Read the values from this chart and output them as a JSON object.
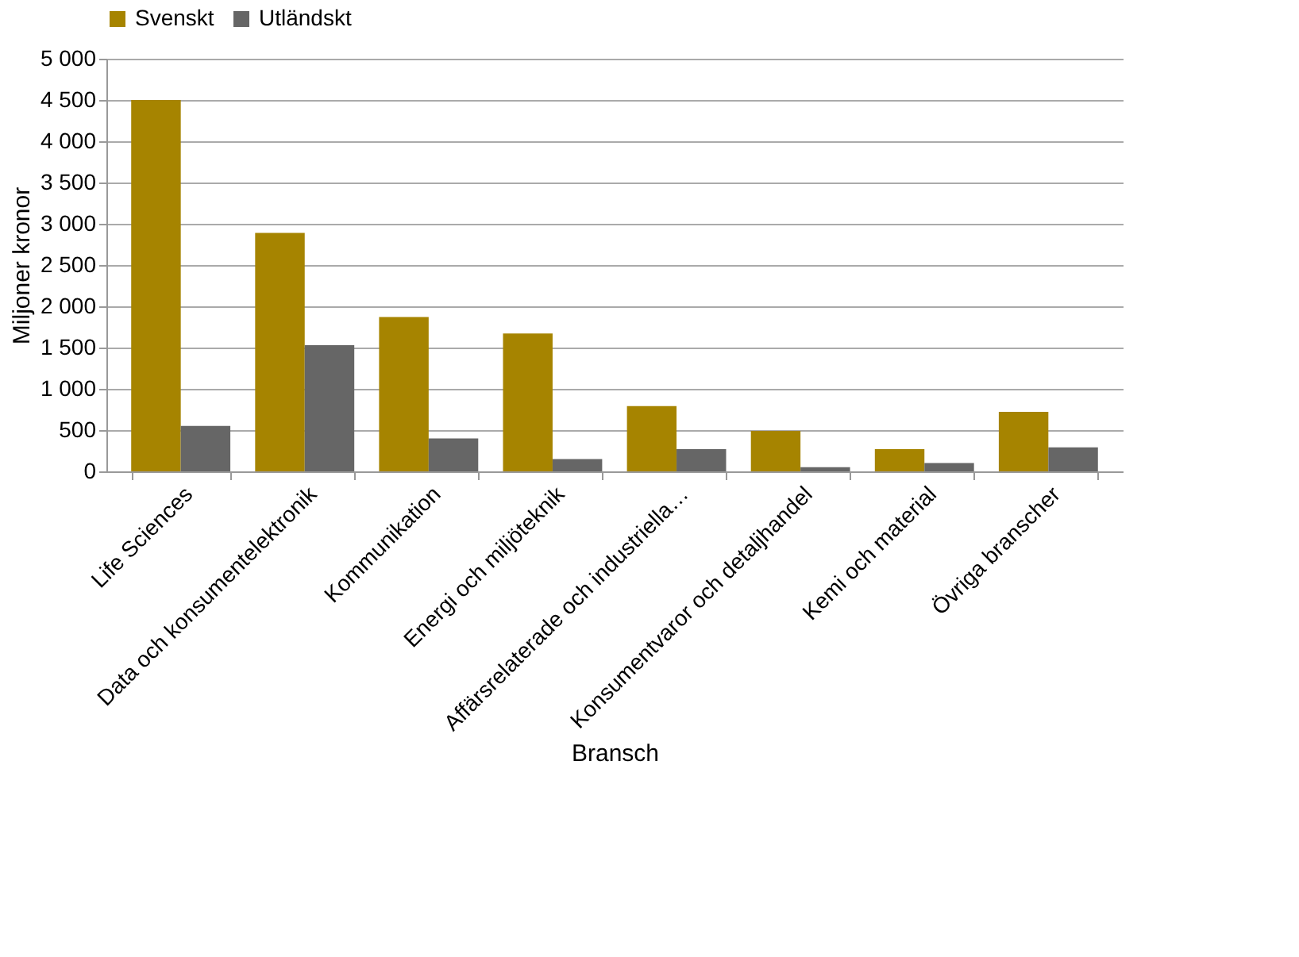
{
  "chart_data": {
    "type": "bar",
    "xlabel": "Bransch",
    "ylabel": "Miljoner kronor",
    "categories": [
      "Life Sciences",
      "Data och konsumentelektronik",
      "Kommunikation",
      "Energi och miljöteknik",
      "Affärsrelaterade och industriella…",
      "Konsumentvaror och detaljhandel",
      "Kemi och material",
      "Övriga branscher"
    ],
    "series": [
      {
        "name": "Svenskt",
        "color": "#a68400",
        "values": [
          4500,
          2890,
          1870,
          1670,
          790,
          490,
          270,
          720
        ]
      },
      {
        "name": "Utländskt",
        "color": "#666666",
        "values": [
          550,
          1530,
          400,
          150,
          270,
          50,
          100,
          290
        ]
      }
    ],
    "ylim": [
      0,
      5000
    ],
    "yticks": [
      0,
      500,
      {
        "value": 1000,
        "label": "1 000"
      },
      {
        "value": 1500,
        "label": "1 500"
      },
      {
        "value": 2000,
        "label": "2 000"
      },
      {
        "value": 2500,
        "label": "2 500"
      },
      {
        "value": 3000,
        "label": "3 000"
      },
      {
        "value": 3500,
        "label": "3 500"
      },
      {
        "value": 4000,
        "label": "4 000"
      },
      {
        "value": 4500,
        "label": "4 500"
      },
      {
        "value": 5000,
        "label": "5 000"
      }
    ],
    "grid": "y",
    "legend": "top"
  }
}
